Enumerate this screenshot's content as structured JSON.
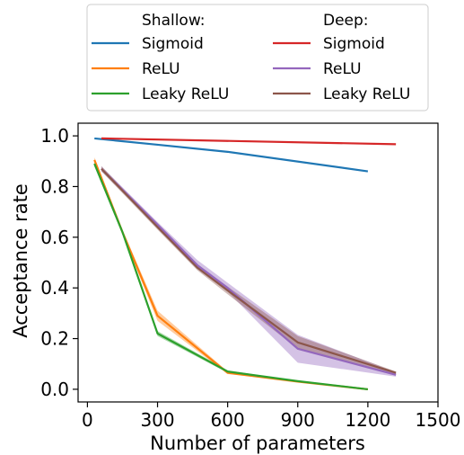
{
  "chart_data": {
    "type": "line",
    "title": "",
    "xlabel": "Number of parameters",
    "ylabel": "Acceptance rate",
    "xlim": [
      -40,
      1500
    ],
    "ylim": [
      -0.05,
      1.05
    ],
    "x_ticks": [
      0,
      300,
      600,
      900,
      1200,
      1500
    ],
    "y_ticks": [
      0.0,
      0.2,
      0.4,
      0.6,
      0.8,
      1.0
    ],
    "x_tick_labels": [
      "0",
      "300",
      "600",
      "900",
      "1200",
      "1500"
    ],
    "y_tick_labels": [
      "0.0",
      "0.2",
      "0.4",
      "0.6",
      "0.8",
      "1.0"
    ],
    "grid": false,
    "legend": {
      "placement": "top-center, above plot, two columns",
      "group_titles": [
        "Shallow:",
        "Deep:"
      ]
    },
    "series": [
      {
        "name": "Sigmoid",
        "group": "Shallow",
        "color": "#1f77b4",
        "x": [
          30,
          300,
          600,
          1200
        ],
        "y": [
          0.99,
          0.965,
          0.937,
          0.86
        ],
        "lower": [
          0.99,
          0.965,
          0.937,
          0.86
        ],
        "upper": [
          0.99,
          0.965,
          0.937,
          0.86
        ]
      },
      {
        "name": "ReLU",
        "group": "Shallow",
        "color": "#ff7f0e",
        "x": [
          30,
          150,
          300,
          600,
          900,
          1200
        ],
        "y": [
          0.905,
          0.62,
          0.29,
          0.065,
          0.03,
          0.0
        ],
        "lower": [
          0.895,
          0.61,
          0.27,
          0.06,
          0.03,
          0.0
        ],
        "upper": [
          0.915,
          0.63,
          0.31,
          0.07,
          0.03,
          0.0
        ]
      },
      {
        "name": "Leaky ReLU",
        "group": "Shallow",
        "color": "#2ca02c",
        "x": [
          30,
          150,
          300,
          600,
          900,
          1200
        ],
        "y": [
          0.89,
          0.62,
          0.22,
          0.07,
          0.032,
          0.0
        ],
        "lower": [
          0.88,
          0.61,
          0.21,
          0.065,
          0.032,
          0.0
        ],
        "upper": [
          0.9,
          0.63,
          0.23,
          0.075,
          0.032,
          0.0
        ]
      },
      {
        "name": "Sigmoid",
        "group": "Deep",
        "color": "#d62728",
        "x": [
          60,
          1320
        ],
        "y": [
          0.99,
          0.967
        ],
        "lower": [
          0.99,
          0.967
        ],
        "upper": [
          0.99,
          0.967
        ]
      },
      {
        "name": "ReLU",
        "group": "Deep",
        "color": "#9467bd",
        "x": [
          60,
          300,
          470,
          600,
          900,
          1320
        ],
        "y": [
          0.87,
          0.65,
          0.49,
          0.4,
          0.16,
          0.057
        ],
        "lower": [
          0.86,
          0.64,
          0.48,
          0.385,
          0.105,
          0.05
        ],
        "upper": [
          0.88,
          0.66,
          0.51,
          0.42,
          0.215,
          0.067
        ]
      },
      {
        "name": "Leaky ReLU",
        "group": "Deep",
        "color": "#8c564b",
        "x": [
          60,
          300,
          470,
          600,
          900,
          1320
        ],
        "y": [
          0.87,
          0.64,
          0.48,
          0.39,
          0.185,
          0.065
        ],
        "lower": [
          0.86,
          0.63,
          0.47,
          0.375,
          0.16,
          0.06
        ],
        "upper": [
          0.88,
          0.65,
          0.49,
          0.405,
          0.21,
          0.07
        ]
      }
    ]
  }
}
